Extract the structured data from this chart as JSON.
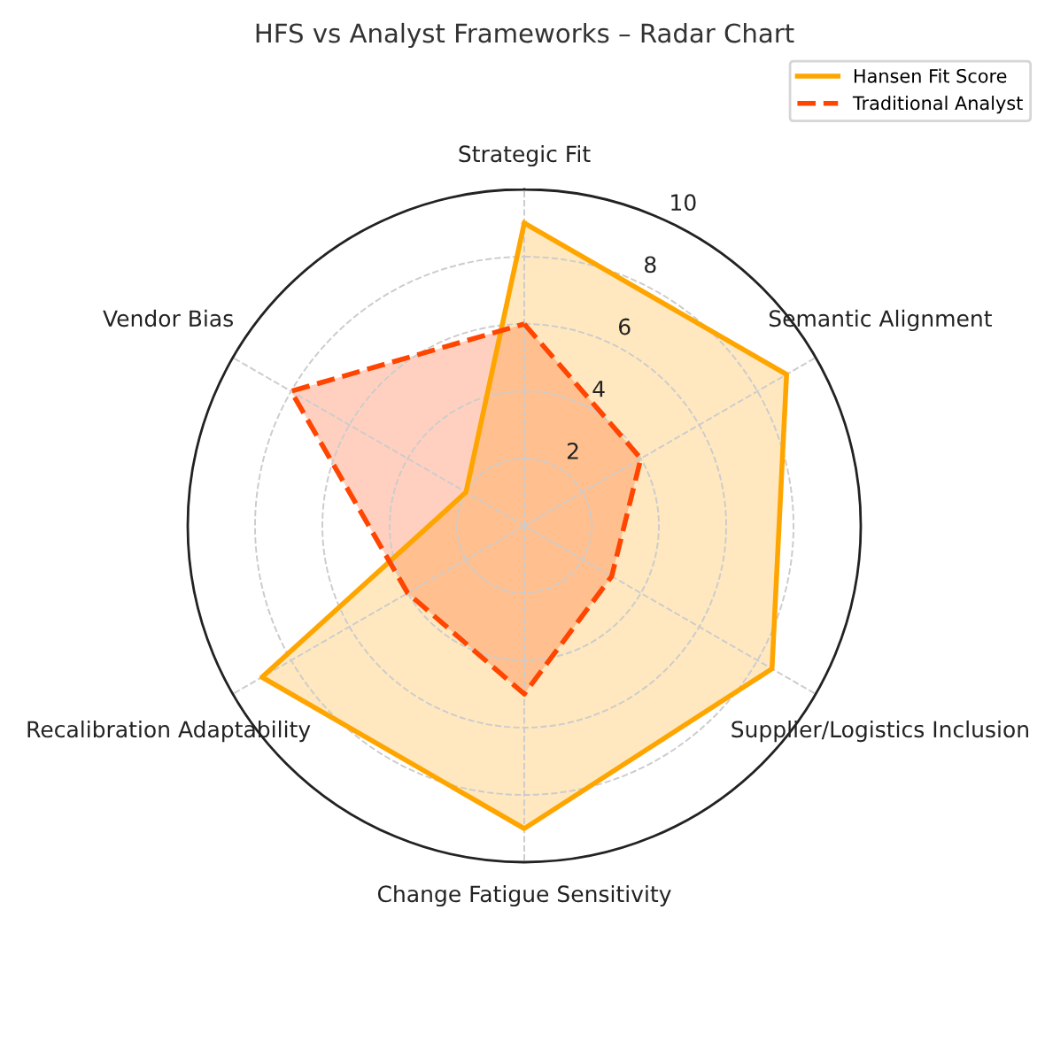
{
  "chart_data": {
    "type": "radar",
    "title": "HFS vs Analyst Frameworks – Radar Chart",
    "categories": [
      "Strategic Fit",
      "Semantic Alignment",
      "Supplier/Logistics Inclusion",
      "Change Fatigue Sensitivity",
      "Recalibration Adaptability",
      "Vendor Bias"
    ],
    "series": [
      {
        "name": "Hansen Fit Score",
        "color": "#ffa500",
        "values": [
          9,
          9,
          8.5,
          9,
          9,
          2
        ],
        "line_style": "solid"
      },
      {
        "name": "Traditional Analyst",
        "color": "#ff4500",
        "values": [
          6,
          4,
          3,
          5,
          4,
          8
        ],
        "line_style": "dashed"
      }
    ],
    "ylim": [
      0,
      10
    ],
    "yticks": [
      2,
      4,
      6,
      8,
      10
    ],
    "grid": true,
    "legend": "top right"
  }
}
